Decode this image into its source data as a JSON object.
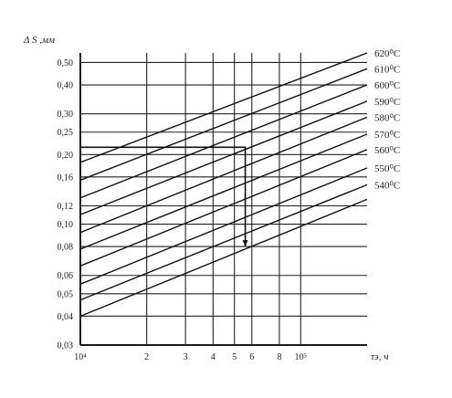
{
  "chart_data": {
    "type": "line",
    "ylabel": "Δ S ,мм",
    "xlabel": "τэ, ч",
    "x_scale": "log",
    "y_scale": "log",
    "xlim": [
      10000,
      200000
    ],
    "ylim": [
      0.03,
      0.55
    ],
    "grid": true,
    "y_ticks": [
      {
        "value": 0.5,
        "label": "0,50"
      },
      {
        "value": 0.4,
        "label": "0,40"
      },
      {
        "value": 0.3,
        "label": "0,30"
      },
      {
        "value": 0.25,
        "label": "0,25"
      },
      {
        "value": 0.2,
        "label": "0,20"
      },
      {
        "value": 0.16,
        "label": "0,16"
      },
      {
        "value": 0.12,
        "label": "0,12"
      },
      {
        "value": 0.1,
        "label": "0,10"
      },
      {
        "value": 0.08,
        "label": "0,08"
      },
      {
        "value": 0.06,
        "label": "0,06"
      },
      {
        "value": 0.05,
        "label": "0,05"
      },
      {
        "value": 0.04,
        "label": "0,04"
      },
      {
        "value": 0.03,
        "label": "0,03"
      }
    ],
    "x_ticks": [
      {
        "value": 10000,
        "label": "10⁴"
      },
      {
        "value": 20000,
        "label": "2"
      },
      {
        "value": 30000,
        "label": "3"
      },
      {
        "value": 40000,
        "label": "4"
      },
      {
        "value": 50000,
        "label": "5"
      },
      {
        "value": 60000,
        "label": "6"
      },
      {
        "value": 80000,
        "label": "8"
      },
      {
        "value": 100000,
        "label": "10⁵"
      }
    ],
    "series": [
      {
        "name": "620⁰С",
        "x": [
          10000,
          200000
        ],
        "y": [
          0.185,
          0.55
        ]
      },
      {
        "name": "610⁰С",
        "x": [
          10000,
          200000
        ],
        "y": [
          0.155,
          0.47
        ]
      },
      {
        "name": "600⁰С",
        "x": [
          10000,
          200000
        ],
        "y": [
          0.13,
          0.4
        ]
      },
      {
        "name": "590⁰С",
        "x": [
          10000,
          200000
        ],
        "y": [
          0.11,
          0.34
        ]
      },
      {
        "name": "580⁰С",
        "x": [
          10000,
          200000
        ],
        "y": [
          0.092,
          0.29
        ]
      },
      {
        "name": "570⁰С",
        "x": [
          10000,
          200000
        ],
        "y": [
          0.078,
          0.245
        ]
      },
      {
        "name": "560⁰С",
        "x": [
          10000,
          200000
        ],
        "y": [
          0.066,
          0.21
        ]
      },
      {
        "name": "550⁰С",
        "x": [
          10000,
          200000
        ],
        "y": [
          0.055,
          0.175
        ]
      },
      {
        "name": "540⁰С",
        "x": [
          10000,
          200000
        ],
        "y": [
          0.047,
          0.148
        ]
      },
      {
        "x": [
          10000,
          200000
        ],
        "y": [
          0.04,
          0.128
        ]
      }
    ],
    "example_path": {
      "x": [
        10000,
        56000,
        56000
      ],
      "y": [
        0.215,
        0.215,
        0.08
      ]
    }
  }
}
